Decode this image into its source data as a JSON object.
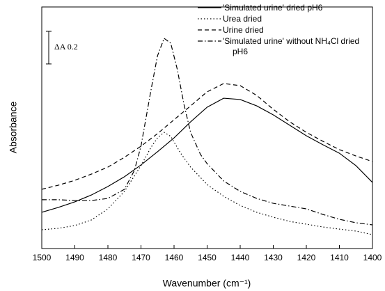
{
  "chart_data": {
    "type": "line",
    "x_label": "Wavenumber (cm⁻¹)",
    "y_label": "Absorbance",
    "xlim": [
      1500,
      1400
    ],
    "xticks": [
      1500,
      1490,
      1480,
      1470,
      1460,
      1450,
      1440,
      1430,
      1420,
      1410,
      1400
    ],
    "ylim": [
      0,
      1.48
    ],
    "scale_bar": {
      "label": "ΔA 0.2",
      "value": 0.2
    },
    "legend": "upper right",
    "series": [
      {
        "name": "'Simulated urine' dried pH6",
        "color": "#000000",
        "dash": "solid",
        "x": [
          1500,
          1495,
          1490,
          1485,
          1480,
          1475,
          1470,
          1465,
          1460,
          1455,
          1450,
          1445,
          1440,
          1435,
          1430,
          1425,
          1420,
          1415,
          1410,
          1405,
          1400
        ],
        "values": [
          0.222,
          0.252,
          0.286,
          0.328,
          0.38,
          0.44,
          0.512,
          0.593,
          0.678,
          0.776,
          0.866,
          0.921,
          0.913,
          0.874,
          0.819,
          0.755,
          0.691,
          0.636,
          0.584,
          0.508,
          0.405
        ]
      },
      {
        "name": "Urea dried",
        "color": "#000000",
        "dash": "dotted",
        "x": [
          1500,
          1495,
          1490,
          1485,
          1480,
          1475,
          1470,
          1467,
          1465,
          1463,
          1461,
          1458,
          1455,
          1450,
          1445,
          1440,
          1435,
          1430,
          1425,
          1420,
          1415,
          1410,
          1405,
          1400
        ],
        "values": [
          0.115,
          0.124,
          0.141,
          0.175,
          0.243,
          0.35,
          0.508,
          0.619,
          0.678,
          0.712,
          0.687,
          0.584,
          0.499,
          0.392,
          0.32,
          0.264,
          0.222,
          0.192,
          0.166,
          0.149,
          0.132,
          0.119,
          0.107,
          0.085
        ]
      },
      {
        "name": "Urine dried",
        "color": "#000000",
        "dash": "dashed",
        "x": [
          1500,
          1495,
          1490,
          1485,
          1480,
          1475,
          1470,
          1465,
          1460,
          1455,
          1450,
          1445,
          1440,
          1435,
          1430,
          1425,
          1420,
          1415,
          1410,
          1405,
          1400
        ],
        "values": [
          0.363,
          0.388,
          0.418,
          0.456,
          0.499,
          0.559,
          0.627,
          0.704,
          0.789,
          0.874,
          0.96,
          1.011,
          0.998,
          0.938,
          0.853,
          0.776,
          0.712,
          0.657,
          0.606,
          0.567,
          0.533
        ]
      },
      {
        "name": "'Simulated urine' without NH₄Cl dried pH6",
        "color": "#000000",
        "dash": "dashdot",
        "x": [
          1500,
          1495,
          1490,
          1485,
          1480,
          1475,
          1472,
          1470,
          1467,
          1465,
          1463,
          1461,
          1459,
          1457,
          1455,
          1452,
          1450,
          1445,
          1440,
          1435,
          1430,
          1425,
          1420,
          1415,
          1410,
          1405,
          1400
        ],
        "values": [
          0.299,
          0.299,
          0.294,
          0.294,
          0.307,
          0.363,
          0.478,
          0.627,
          0.968,
          1.181,
          1.288,
          1.258,
          1.096,
          0.883,
          0.712,
          0.576,
          0.52,
          0.414,
          0.35,
          0.307,
          0.277,
          0.26,
          0.243,
          0.209,
          0.179,
          0.158,
          0.145
        ]
      }
    ]
  }
}
